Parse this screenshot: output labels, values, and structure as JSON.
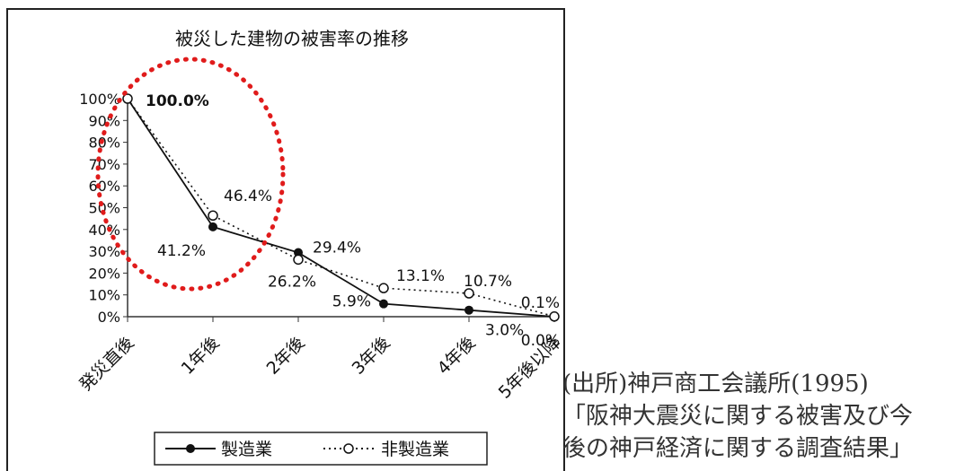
{
  "chart_data": {
    "type": "line",
    "title": "被災した建物の被害率の推移",
    "categories": [
      "発災直後",
      "1年後",
      "2年後",
      "3年後",
      "4年後",
      "5年後以降"
    ],
    "ylim": [
      0,
      100
    ],
    "y_ticks": [
      "0%",
      "10%",
      "20%",
      "30%",
      "40%",
      "50%",
      "60%",
      "70%",
      "80%",
      "90%",
      "100%"
    ],
    "series": [
      {
        "name": "製造業",
        "values": [
          100.0,
          41.2,
          29.4,
          5.9,
          3.0,
          0.0
        ],
        "labels": [
          "100.0%",
          "41.2%",
          "29.4%",
          "5.9%",
          "3.0%",
          "0.0%"
        ],
        "line_style": "solid",
        "marker": "filled-circle"
      },
      {
        "name": "非製造業",
        "values": [
          100.0,
          46.4,
          26.2,
          13.1,
          10.7,
          0.1
        ],
        "labels": [
          "",
          "46.4%",
          "26.2%",
          "13.1%",
          "10.7%",
          "0.1%"
        ],
        "line_style": "dotted",
        "marker": "open-circle"
      }
    ],
    "legend_position": "bottom",
    "highlight_ellipse_color": "#e01b1b",
    "grid": false
  },
  "source_note": {
    "line1": "(出所)神戸商工会議所(1995)",
    "line2": "「阪神大震災に関する被害及び今",
    "line3": "後の神戸経済に関する調査結果」"
  }
}
